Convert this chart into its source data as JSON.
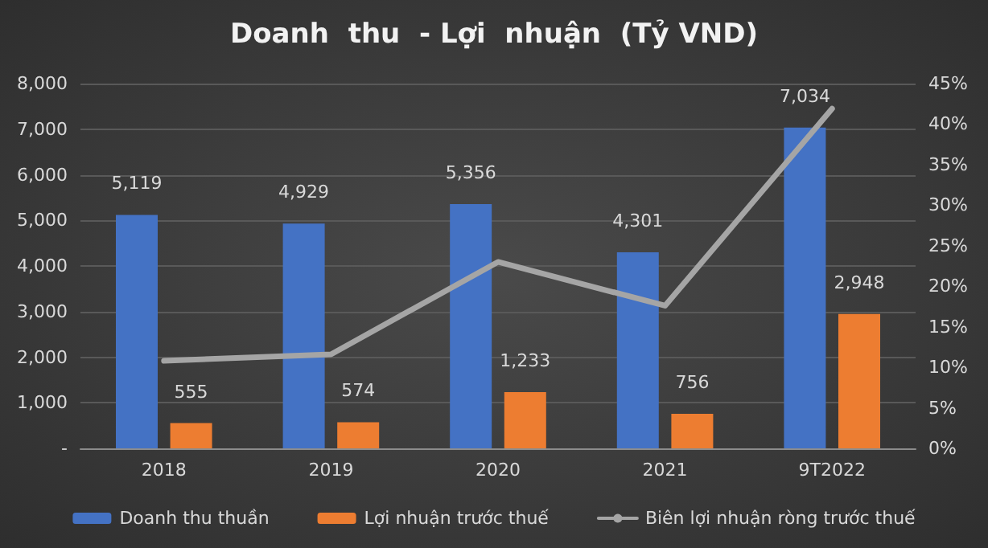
{
  "chart_data": {
    "type": "bar",
    "title": "Doanh  thu  - Lợi  nhuận  (Tỷ VND)",
    "categories": [
      "2018",
      "2019",
      "2020",
      "2021",
      "9T2022"
    ],
    "series": [
      {
        "name": "Doanh thu thuần",
        "color": "#4472c4",
        "values": [
          5119,
          4929,
          5356,
          4301,
          7034
        ],
        "value_labels": [
          "5,119",
          "4,929",
          "5,356",
          "4,301",
          "7,034"
        ]
      },
      {
        "name": "Lợi nhuận trước thuế",
        "color": "#ed7d31",
        "values": [
          555,
          574,
          1233,
          756,
          2948
        ],
        "value_labels": [
          "555",
          "574",
          "1,233",
          "756",
          "2,948"
        ]
      },
      {
        "name": "Biên lợi nhuận ròng trước thuế",
        "type": "line",
        "axis": "y2",
        "color": "#a5a5a5",
        "values": [
          10.8,
          11.6,
          23.0,
          17.6,
          41.9
        ]
      }
    ],
    "ylim": [
      0,
      8000
    ],
    "yticks": [
      {
        "value": 0,
        "label": "-"
      },
      {
        "value": 1000,
        "label": "1,000"
      },
      {
        "value": 2000,
        "label": "2,000"
      },
      {
        "value": 3000,
        "label": "3,000"
      },
      {
        "value": 4000,
        "label": "4,000"
      },
      {
        "value": 5000,
        "label": "5,000"
      },
      {
        "value": 6000,
        "label": "6,000"
      },
      {
        "value": 7000,
        "label": "7,000"
      },
      {
        "value": 8000,
        "label": "8,000"
      }
    ],
    "y2lim": [
      0,
      45
    ],
    "y2ticks": [
      {
        "value": 0,
        "label": "0%"
      },
      {
        "value": 5,
        "label": "5%"
      },
      {
        "value": 10,
        "label": "10%"
      },
      {
        "value": 15,
        "label": "15%"
      },
      {
        "value": 20,
        "label": "20%"
      },
      {
        "value": 25,
        "label": "25%"
      },
      {
        "value": 30,
        "label": "30%"
      },
      {
        "value": 35,
        "label": "35%"
      },
      {
        "value": 40,
        "label": "40%"
      },
      {
        "value": 45,
        "label": "45%"
      }
    ],
    "grid": "y",
    "legend": "bottom",
    "marker": "none",
    "line_style": "solid"
  }
}
